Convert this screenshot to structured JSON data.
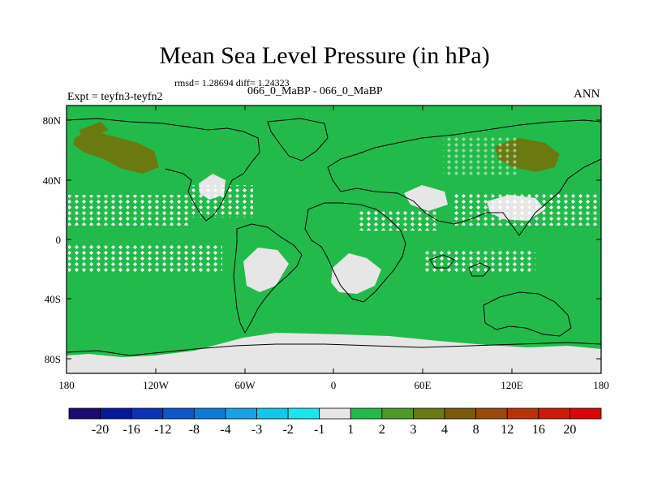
{
  "title": "Mean Sea Level Pressure (in hPa)",
  "stats": "rmsd= 1.28694 diff= 1.24323",
  "experiment": "Expt = teyfn3-teyfn2",
  "subtitle": "066_0_MaBP - 066_0_MaBP",
  "season": "ANN",
  "map": {
    "lat_ticks": [
      "80N",
      "40N",
      "0",
      "40S",
      "80S"
    ],
    "lon_ticks": [
      "180",
      "120W",
      "60W",
      "0",
      "60E",
      "120E",
      "180"
    ],
    "dominant_fill_color": "#22bb4b",
    "land_outline_color": "#000000"
  },
  "colorbar": {
    "labels": [
      "-20",
      "-16",
      "-12",
      "-8",
      "-4",
      "-3",
      "-2",
      "-1",
      "1",
      "2",
      "3",
      "4",
      "8",
      "12",
      "16",
      "20"
    ],
    "colors": [
      "#1d0a73",
      "#07199a",
      "#0a33b8",
      "#0e56cc",
      "#0c7bd6",
      "#16a2e6",
      "#10c7ee",
      "#1be5ef",
      "#e6e6e6",
      "#22bb4b",
      "#4e9a28",
      "#6a7a10",
      "#7a5a08",
      "#9a4a08",
      "#b83208",
      "#cc1a08",
      "#d80808"
    ]
  }
}
